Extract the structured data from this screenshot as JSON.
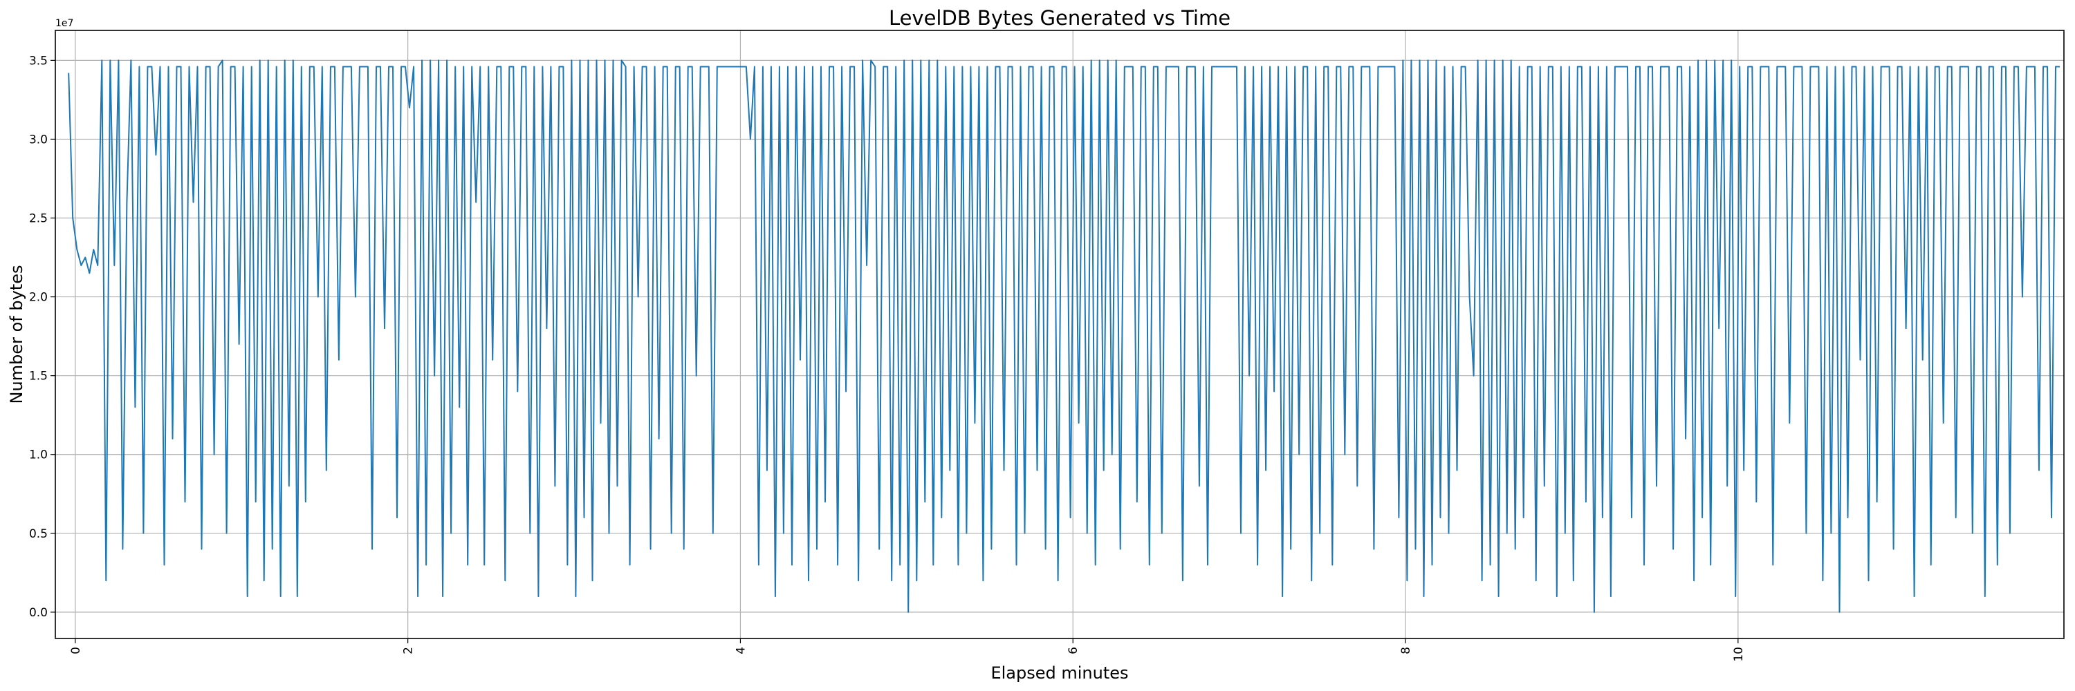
{
  "chart_data": {
    "type": "line",
    "title": "LevelDB Bytes Generated vs Time",
    "xlabel": "Elapsed minutes",
    "ylabel": "Number of bytes",
    "y_offset_label": "1e7",
    "y_units_multiplier": 10000000,
    "xlim": [
      -0.12,
      11.96
    ],
    "ylim": [
      -0.167,
      3.69
    ],
    "xticks": [
      0,
      2,
      4,
      6,
      8,
      10
    ],
    "xtick_labels": [
      "0",
      "2",
      "4",
      "6",
      "8",
      "10"
    ],
    "yticks": [
      0,
      0.5,
      1.0,
      1.5,
      2.0,
      2.5,
      3.0,
      3.5
    ],
    "ytick_labels": [
      "0.0",
      "0.5",
      "1.0",
      "1.5",
      "2.0",
      "2.5",
      "3.0",
      "3.5"
    ],
    "grid": true,
    "color": "#1f77b4",
    "series": [
      {
        "name": "bytes",
        "x_start": -0.04,
        "x_step": 0.025,
        "values": [
          3.42,
          2.5,
          2.3,
          2.2,
          2.25,
          2.15,
          2.3,
          2.2,
          3.5,
          0.2,
          3.5,
          2.2,
          3.5,
          0.4,
          2.6,
          3.5,
          1.3,
          3.46,
          0.5,
          3.46,
          3.46,
          2.9,
          3.46,
          0.3,
          3.46,
          1.1,
          3.46,
          3.46,
          0.7,
          3.46,
          2.6,
          3.46,
          0.4,
          3.46,
          3.46,
          1.0,
          3.46,
          3.5,
          0.5,
          3.46,
          3.46,
          1.7,
          3.46,
          0.1,
          3.46,
          0.7,
          3.5,
          0.2,
          3.5,
          0.4,
          3.46,
          0.1,
          3.5,
          0.8,
          3.5,
          0.1,
          3.46,
          0.7,
          3.46,
          3.46,
          2.0,
          3.46,
          0.9,
          3.46,
          3.46,
          1.6,
          3.46,
          3.46,
          3.46,
          2.0,
          3.46,
          3.46,
          3.46,
          0.4,
          3.46,
          3.46,
          1.8,
          3.46,
          3.46,
          0.6,
          3.46,
          3.46,
          3.2,
          3.46,
          0.1,
          3.5,
          0.3,
          3.5,
          1.5,
          3.5,
          0.1,
          3.5,
          0.5,
          3.46,
          1.3,
          3.46,
          0.3,
          3.46,
          2.6,
          3.46,
          0.3,
          3.46,
          1.6,
          3.46,
          3.46,
          0.2,
          3.46,
          3.46,
          1.4,
          3.46,
          3.46,
          0.5,
          3.46,
          0.1,
          3.46,
          1.8,
          3.46,
          0.8,
          3.46,
          3.46,
          0.3,
          3.5,
          0.1,
          3.5,
          0.6,
          3.5,
          0.2,
          3.5,
          1.2,
          3.5,
          0.5,
          3.5,
          0.8,
          3.5,
          3.46,
          0.3,
          3.46,
          2.0,
          3.46,
          3.46,
          0.4,
          3.46,
          1.1,
          3.46,
          3.46,
          0.5,
          3.46,
          3.46,
          0.4,
          3.46,
          3.46,
          1.5,
          3.46,
          3.46,
          3.46,
          0.5,
          3.46,
          3.46,
          3.46,
          3.46,
          3.46,
          3.46,
          3.46,
          3.46,
          3.0,
          3.46,
          0.3,
          3.46,
          0.9,
          3.46,
          0.1,
          3.46,
          0.5,
          3.46,
          0.3,
          3.46,
          1.6,
          3.46,
          0.2,
          3.46,
          0.4,
          3.46,
          0.7,
          3.46,
          3.46,
          0.3,
          3.46,
          1.4,
          3.46,
          3.46,
          0.2,
          3.5,
          2.2,
          3.5,
          3.46,
          0.4,
          3.46,
          3.46,
          0.2,
          3.46,
          0.3,
          3.5,
          0.0,
          3.5,
          0.2,
          3.5,
          0.7,
          3.5,
          0.3,
          3.5,
          0.6,
          3.46,
          0.9,
          3.46,
          0.3,
          3.46,
          0.5,
          3.46,
          1.2,
          3.46,
          0.2,
          3.46,
          0.4,
          3.46,
          3.46,
          0.9,
          3.46,
          3.46,
          0.3,
          3.46,
          0.5,
          3.46,
          3.46,
          0.9,
          3.46,
          0.4,
          3.46,
          3.46,
          0.2,
          3.46,
          3.46,
          0.6,
          3.46,
          1.2,
          3.46,
          0.5,
          3.5,
          0.3,
          3.5,
          0.9,
          3.5,
          1.0,
          3.5,
          0.4,
          3.46,
          3.46,
          3.46,
          0.7,
          3.46,
          3.46,
          0.3,
          3.46,
          3.46,
          0.5,
          3.46,
          3.46,
          3.46,
          3.46,
          0.2,
          3.46,
          3.46,
          3.46,
          0.8,
          3.46,
          0.3,
          3.46,
          3.46,
          3.46,
          3.46,
          3.46,
          3.46,
          3.46,
          0.5,
          3.46,
          1.5,
          3.46,
          0.3,
          3.46,
          0.9,
          3.46,
          1.4,
          3.46,
          0.1,
          3.46,
          0.4,
          3.46,
          1.0,
          3.46,
          3.46,
          0.2,
          3.46,
          0.5,
          3.46,
          3.46,
          0.3,
          3.46,
          3.46,
          1.0,
          3.46,
          3.46,
          0.8,
          3.46,
          3.46,
          3.46,
          0.4,
          3.46,
          3.46,
          3.46,
          3.46,
          3.46,
          0.6,
          3.5,
          0.2,
          3.5,
          0.4,
          3.5,
          0.1,
          3.5,
          0.3,
          3.5,
          0.6,
          3.46,
          0.5,
          3.46,
          0.9,
          3.46,
          3.46,
          2.0,
          1.5,
          3.5,
          0.2,
          3.5,
          0.3,
          3.5,
          0.1,
          3.5,
          0.5,
          3.5,
          0.4,
          3.46,
          0.6,
          3.46,
          3.46,
          0.2,
          3.46,
          0.8,
          3.46,
          3.46,
          0.1,
          3.46,
          0.5,
          3.46,
          0.2,
          3.46,
          3.46,
          0.7,
          3.46,
          0.0,
          3.46,
          0.6,
          3.46,
          0.1,
          3.46,
          3.46,
          3.46,
          3.46,
          0.6,
          3.46,
          3.46,
          0.3,
          3.46,
          3.46,
          0.8,
          3.46,
          3.46,
          3.46,
          0.4,
          3.46,
          3.46,
          1.1,
          3.46,
          0.2,
          3.5,
          0.6,
          3.5,
          0.3,
          3.5,
          1.8,
          3.5,
          0.8,
          3.5,
          0.1,
          3.46,
          0.9,
          3.46,
          3.46,
          0.7,
          3.46,
          3.46,
          3.46,
          0.3,
          3.46,
          3.46,
          3.46,
          1.2,
          3.46,
          3.46,
          3.46,
          0.5,
          3.46,
          3.46,
          3.46,
          0.2,
          3.46,
          0.5,
          3.46,
          0.0,
          3.46,
          0.6,
          3.46,
          3.46,
          1.6,
          3.46,
          0.2,
          3.46,
          0.7,
          3.46,
          3.46,
          3.46,
          0.4,
          3.46,
          3.46,
          1.8,
          3.46,
          0.1,
          3.46,
          1.6,
          3.46,
          0.3,
          3.46,
          3.46,
          1.2,
          3.46,
          3.46,
          0.6,
          3.46,
          3.46,
          3.46,
          0.5,
          3.46,
          3.46,
          0.1,
          3.46,
          3.46,
          0.3,
          3.46,
          3.46,
          0.5,
          3.46,
          3.46,
          2.0,
          3.46,
          3.46,
          3.46,
          0.9,
          3.46,
          3.46,
          0.6,
          3.46,
          3.46
        ]
      }
    ]
  }
}
